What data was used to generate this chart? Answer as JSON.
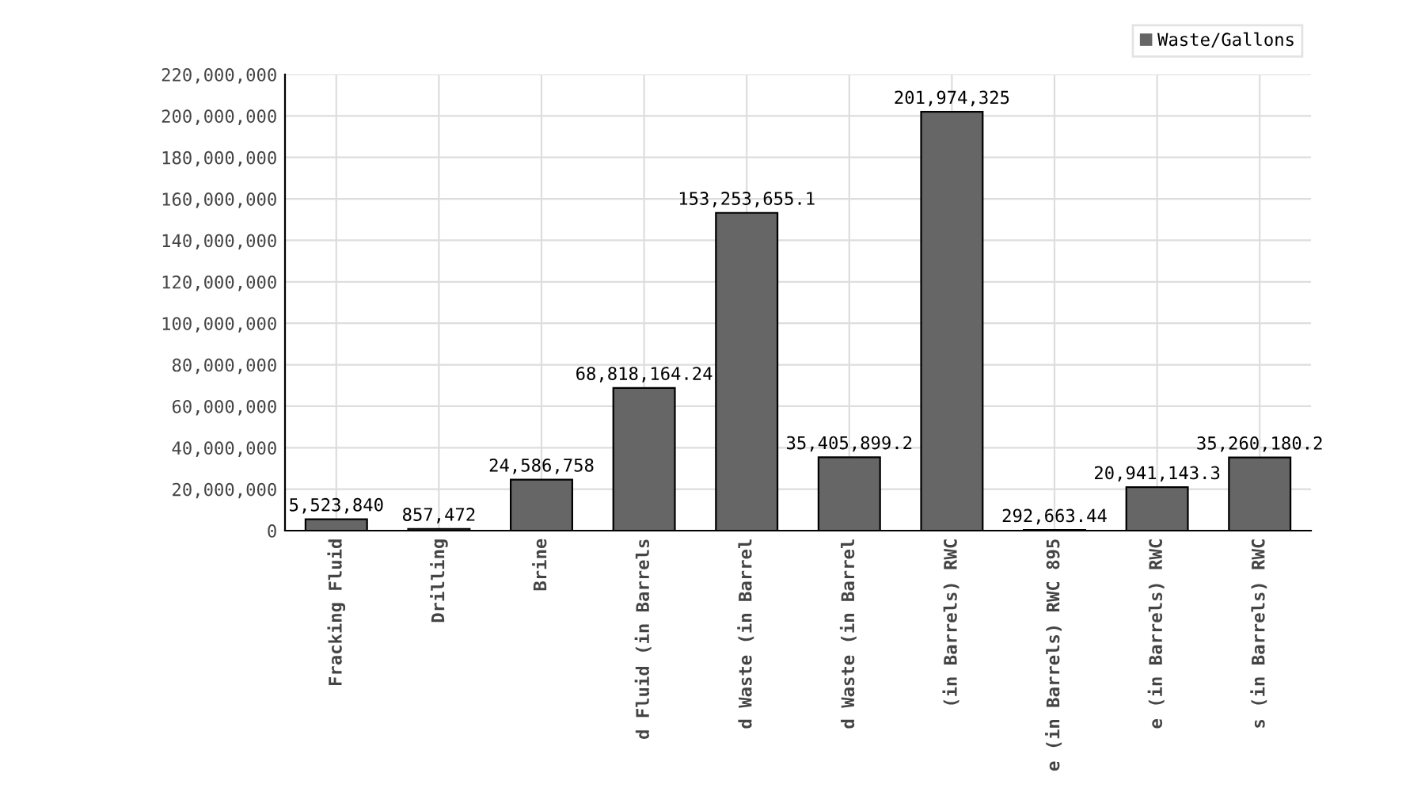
{
  "chart_data": {
    "type": "bar",
    "categories": [
      "Fracking Fluid",
      "Drilling",
      "Brine",
      "d Fluid (in Barrels",
      "d Waste (in Barrel",
      "d Waste (in Barrel",
      "(in Barrels) RWC",
      "e (in Barrels) RWC 895",
      "e (in Barrels) RWC",
      "s (in Barrels) RWC"
    ],
    "series": [
      {
        "name": "Waste/Gallons",
        "color": "#666666",
        "values": [
          5523840,
          857472,
          24586758,
          68818164.24,
          153253655.1,
          35405899.2,
          201974325,
          292663.44,
          20941143.3,
          35260180.2
        ],
        "value_labels": [
          "5,523,840",
          "857,472",
          "24,586,758",
          "68,818,164.24",
          "153,253,655.1",
          "35,405,899.2",
          "201,974,325",
          "292,663.44",
          "20,941,143.3",
          "35,260,180.2"
        ]
      }
    ],
    "ylim": [
      0,
      220000000
    ],
    "yticks": [
      {
        "value": 0,
        "label": "0"
      },
      {
        "value": 20000000,
        "label": "20,000,000"
      },
      {
        "value": 40000000,
        "label": "40,000,000"
      },
      {
        "value": 60000000,
        "label": "60,000,000"
      },
      {
        "value": 80000000,
        "label": "80,000,000"
      },
      {
        "value": 100000000,
        "label": "100,000,000"
      },
      {
        "value": 120000000,
        "label": "120,000,000"
      },
      {
        "value": 140000000,
        "label": "140,000,000"
      },
      {
        "value": 160000000,
        "label": "160,000,000"
      },
      {
        "value": 180000000,
        "label": "180,000,000"
      },
      {
        "value": 200000000,
        "label": "200,000,000"
      },
      {
        "value": 220000000,
        "label": "220,000,000"
      }
    ],
    "grid": true,
    "legend": "top right"
  }
}
